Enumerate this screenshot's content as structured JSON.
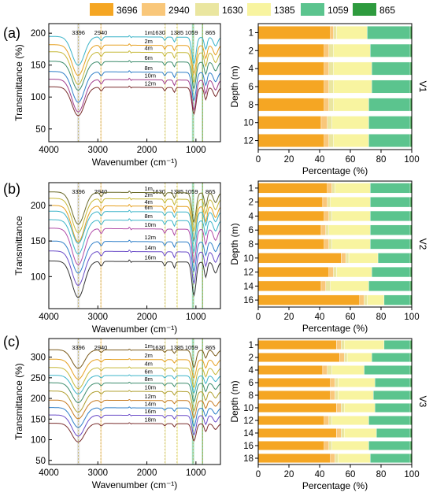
{
  "legend": [
    {
      "label": "3696",
      "color": "#F5A623"
    },
    {
      "label": "2940",
      "color": "#F9C77A"
    },
    {
      "label": "1630",
      "color": "#EAE6A0"
    },
    {
      "label": "1385",
      "color": "#F8F4A0"
    },
    {
      "label": "1059",
      "color": "#5BC48E"
    },
    {
      "label": "865",
      "color": "#2E9B3E"
    }
  ],
  "chart_data": [
    {
      "type": "line",
      "panel": "(a)",
      "xlabel": "Wavenumber (cm⁻¹)",
      "ylabel": "Transmittance (%)",
      "xlim": [
        4000,
        500
      ],
      "ylim": [
        30,
        215
      ],
      "xticks": [
        4000,
        3000,
        2000,
        1000
      ],
      "yticks": [
        50,
        100,
        150,
        200
      ],
      "band_labels": [
        "3396",
        "2940",
        "1630",
        "1385",
        "1059",
        "865"
      ],
      "series": [
        {
          "name": "1m",
          "offset": 195,
          "color": "#3CB4C8"
        },
        {
          "name": "2m",
          "offset": 182,
          "color": "#E6A020"
        },
        {
          "name": "4m",
          "offset": 171,
          "color": "#C6B838"
        },
        {
          "name": "6m",
          "offset": 156,
          "color": "#3C8C6C"
        },
        {
          "name": "8m",
          "offset": 140,
          "color": "#2F7FC8"
        },
        {
          "name": "10m",
          "offset": 128,
          "color": "#A03C8C"
        },
        {
          "name": "12m",
          "offset": 116,
          "color": "#7A2E2E"
        }
      ]
    },
    {
      "type": "bar",
      "stacked": true,
      "orientation": "horizontal",
      "panel": "(a)",
      "label": "V1",
      "xlabel": "Percentage (%)",
      "ylabel": "Depth (m)",
      "xlim": [
        0,
        100
      ],
      "xticks": [
        0,
        20,
        40,
        60,
        80,
        100
      ],
      "categories": [
        "1",
        "2",
        "4",
        "6",
        "8",
        "10",
        "12"
      ],
      "series": [
        {
          "name": "3696",
          "values": [
            47,
            43,
            43,
            43,
            43,
            41,
            43
          ]
        },
        {
          "name": "2940",
          "values": [
            2,
            3,
            3,
            3,
            3,
            4,
            3
          ]
        },
        {
          "name": "1630",
          "values": [
            2,
            3,
            3,
            3,
            3,
            3,
            3
          ]
        },
        {
          "name": "1385",
          "values": [
            20,
            24,
            25,
            25,
            23,
            24,
            23
          ]
        },
        {
          "name": "1059",
          "values": [
            28,
            26,
            25,
            25,
            27,
            27,
            27
          ]
        },
        {
          "name": "865",
          "values": [
            1,
            1,
            1,
            1,
            1,
            1,
            1
          ]
        }
      ]
    },
    {
      "type": "line",
      "panel": "(b)",
      "xlabel": "Wavenumber (cm⁻¹)",
      "ylabel": "Transmittance",
      "xlim": [
        4000,
        500
      ],
      "ylim": [
        55,
        232
      ],
      "xticks": [
        4000,
        3000,
        2000,
        1000
      ],
      "yticks": [
        100,
        150,
        200
      ],
      "band_labels": [
        "3396",
        "2940",
        "1630",
        "1385",
        "1059",
        "865"
      ],
      "series": [
        {
          "name": "1m",
          "offset": 219,
          "color": "#6A6A2A"
        },
        {
          "name": "2m",
          "offset": 210,
          "color": "#C6B838"
        },
        {
          "name": "4m",
          "offset": 200,
          "color": "#E6A020"
        },
        {
          "name": "6m",
          "offset": 192,
          "color": "#3CB4C8"
        },
        {
          "name": "8m",
          "offset": 180,
          "color": "#3CB4C8"
        },
        {
          "name": "10m",
          "offset": 168,
          "color": "#B04CA8"
        },
        {
          "name": "12m",
          "offset": 150,
          "color": "#2F7FC8"
        },
        {
          "name": "14m",
          "offset": 136,
          "color": "#6A4CC8"
        },
        {
          "name": "16m",
          "offset": 122,
          "color": "#333333"
        }
      ]
    },
    {
      "type": "bar",
      "stacked": true,
      "orientation": "horizontal",
      "panel": "(b)",
      "label": "V2",
      "xlabel": "Percentage (%)",
      "ylabel": "Depth (m)",
      "xlim": [
        0,
        100
      ],
      "xticks": [
        0,
        20,
        40,
        60,
        80,
        100
      ],
      "categories": [
        "1",
        "2",
        "4",
        "6",
        "8",
        "10",
        "12",
        "14",
        "16"
      ],
      "series": [
        {
          "name": "3696",
          "values": [
            45,
            42,
            43,
            41,
            43,
            54,
            46,
            41,
            66
          ]
        },
        {
          "name": "2940",
          "values": [
            3,
            3,
            3,
            3,
            3,
            3,
            3,
            3,
            3
          ]
        },
        {
          "name": "1630",
          "values": [
            2,
            2,
            2,
            2,
            2,
            2,
            2,
            3,
            2
          ]
        },
        {
          "name": "1385",
          "values": [
            23,
            26,
            25,
            27,
            25,
            19,
            23,
            25,
            11
          ]
        },
        {
          "name": "1059",
          "values": [
            26,
            26,
            26,
            26,
            26,
            21,
            25,
            27,
            17
          ]
        },
        {
          "name": "865",
          "values": [
            1,
            1,
            1,
            1,
            1,
            1,
            1,
            1,
            1
          ]
        }
      ]
    },
    {
      "type": "line",
      "panel": "(c)",
      "xlabel": "Wavenumber (cm⁻¹)",
      "ylabel": "Transmittance (%)",
      "xlim": [
        4000,
        500
      ],
      "ylim": [
        40,
        345
      ],
      "xticks": [
        4000,
        3000,
        2000,
        1000
      ],
      "yticks": [
        50,
        100,
        150,
        200,
        250,
        300
      ],
      "band_labels": [
        "3396",
        "2940",
        "1630",
        "1385",
        "1059",
        "865"
      ],
      "series": [
        {
          "name": "1m",
          "offset": 318,
          "color": "#7A5A1A"
        },
        {
          "name": "2m",
          "offset": 295,
          "color": "#E6A020"
        },
        {
          "name": "4m",
          "offset": 275,
          "color": "#C6B838"
        },
        {
          "name": "6m",
          "offset": 256,
          "color": "#3CB4C8"
        },
        {
          "name": "8m",
          "offset": 238,
          "color": "#3C8C6C"
        },
        {
          "name": "10m",
          "offset": 218,
          "color": "#B0A030"
        },
        {
          "name": "12m",
          "offset": 196,
          "color": "#C67A20"
        },
        {
          "name": "14m",
          "offset": 178,
          "color": "#2F7FC8"
        },
        {
          "name": "16m",
          "offset": 160,
          "color": "#6A4CC8"
        },
        {
          "name": "18m",
          "offset": 140,
          "color": "#7A2E2E"
        }
      ]
    },
    {
      "type": "bar",
      "stacked": true,
      "orientation": "horizontal",
      "panel": "(c)",
      "label": "V3",
      "xlabel": "Percentage (%)",
      "ylabel": "Depth (m)",
      "xlim": [
        0,
        100
      ],
      "xticks": [
        0,
        20,
        40,
        60,
        80,
        100
      ],
      "categories": [
        "1",
        "2",
        "4",
        "6",
        "8",
        "10",
        "12",
        "14",
        "16",
        "18"
      ],
      "series": [
        {
          "name": "3696",
          "values": [
            51,
            53,
            42,
            47,
            47,
            51,
            43,
            51,
            43,
            47
          ]
        },
        {
          "name": "2940",
          "values": [
            3,
            3,
            3,
            3,
            3,
            3,
            3,
            3,
            3,
            3
          ]
        },
        {
          "name": "1630",
          "values": [
            2,
            2,
            3,
            2,
            2,
            2,
            2,
            2,
            2,
            2
          ]
        },
        {
          "name": "1385",
          "values": [
            26,
            16,
            21,
            24,
            23,
            20,
            24,
            21,
            24,
            21
          ]
        },
        {
          "name": "1059",
          "values": [
            17,
            25,
            30,
            23,
            24,
            23,
            27,
            22,
            27,
            26
          ]
        },
        {
          "name": "865",
          "values": [
            1,
            1,
            1,
            1,
            1,
            1,
            1,
            1,
            1,
            1
          ]
        }
      ]
    }
  ]
}
